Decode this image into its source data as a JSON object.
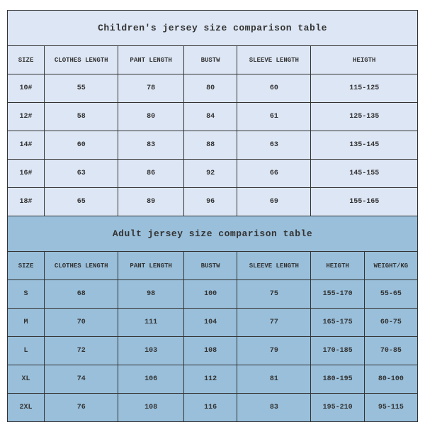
{
  "children": {
    "title": "Children's jersey size comparison table",
    "columns": [
      "SIZE",
      "CLOTHES LENGTH",
      "PANT LENGTH",
      "BUSTW",
      "SLEEVE LENGTH",
      "HEIGTH"
    ],
    "rows": [
      [
        "10#",
        "55",
        "78",
        "80",
        "60",
        "115-125"
      ],
      [
        "12#",
        "58",
        "80",
        "84",
        "61",
        "125-135"
      ],
      [
        "14#",
        "60",
        "83",
        "88",
        "63",
        "135-145"
      ],
      [
        "16#",
        "63",
        "86",
        "92",
        "66",
        "145-155"
      ],
      [
        "18#",
        "65",
        "89",
        "96",
        "69",
        "155-165"
      ]
    ],
    "background_color": "#dde6f4",
    "border_color": "#333333",
    "title_fontsize": 13,
    "header_fontsize": 9,
    "cell_fontsize": 10
  },
  "adult": {
    "title": "Adult jersey size comparison table",
    "columns": [
      "SIZE",
      "CLOTHES LENGTH",
      "PANT LENGTH",
      "BUSTW",
      "SLEEVE LENGTH",
      "HEIGTH",
      "WEIGHT/KG"
    ],
    "rows": [
      [
        "S",
        "68",
        "98",
        "100",
        "75",
        "155-170",
        "55-65"
      ],
      [
        "M",
        "70",
        "111",
        "104",
        "77",
        "165-175",
        "60-75"
      ],
      [
        "L",
        "72",
        "103",
        "108",
        "79",
        "170-185",
        "70-85"
      ],
      [
        "XL",
        "74",
        "106",
        "112",
        "81",
        "180-195",
        "80-100"
      ],
      [
        "2XL",
        "76",
        "108",
        "116",
        "83",
        "195-210",
        "95-115"
      ]
    ],
    "background_color": "#99bfda",
    "border_color": "#333333",
    "title_fontsize": 13,
    "header_fontsize": 9,
    "cell_fontsize": 10
  },
  "colors": {
    "children_bg": "#dde6f4",
    "adult_bg": "#99bfda",
    "border": "#333333",
    "text": "#333333"
  }
}
